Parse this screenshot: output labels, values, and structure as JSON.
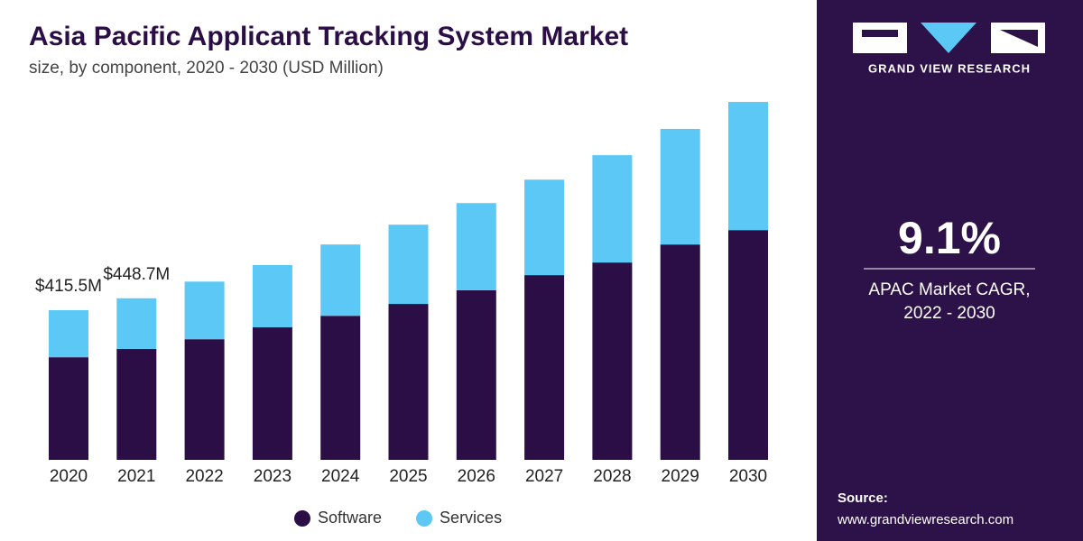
{
  "chart_data": {
    "type": "stacked_bar",
    "title": "Asia Pacific Applicant Tracking System Market",
    "subtitle": "size, by component, 2020 - 2030 (USD Million)",
    "categories": [
      "2020",
      "2021",
      "2022",
      "2023",
      "2024",
      "2025",
      "2026",
      "2027",
      "2028",
      "2029",
      "2030"
    ],
    "series": [
      {
        "name": "Software",
        "color": "#2b0e45",
        "values": [
          285,
          308,
          335,
          368,
          400,
          433,
          471,
          513,
          548,
          598,
          638
        ]
      },
      {
        "name": "Services",
        "color": "#5bc8f5",
        "values": [
          130.5,
          140.7,
          160,
          173,
          198,
          220,
          242,
          265,
          298,
          321,
          356
        ]
      }
    ],
    "totals": [
      415.5,
      448.7
    ],
    "total_labels": [
      "$415.5M",
      "$448.7M"
    ]
  },
  "sidebar": {
    "brand": "GRAND VIEW RESEARCH",
    "cagr": "9.1%",
    "cagr_label": [
      "APAC Market CAGR,",
      "2022 - 2030"
    ],
    "source_title": "Source:",
    "source_url": "www.grandviewresearch.com"
  }
}
